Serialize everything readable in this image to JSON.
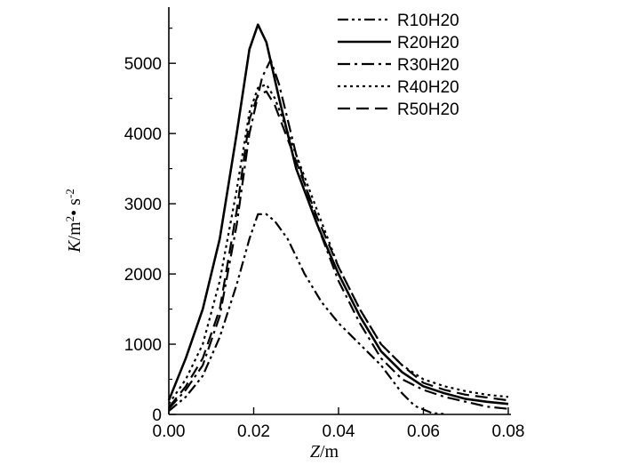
{
  "chart_data": {
    "type": "line",
    "title": "",
    "xlabel": "Z/m",
    "ylabel": "K/m²·s⁻²",
    "xlim": [
      0.0,
      0.08
    ],
    "ylim": [
      0,
      5800
    ],
    "x_ticks": [
      "0.00",
      "0.02",
      "0.04",
      "0.06",
      "0.08"
    ],
    "y_ticks": [
      "0",
      "1000",
      "2000",
      "3000",
      "4000",
      "5000"
    ],
    "grid": false,
    "legend_position": "top-right",
    "series": [
      {
        "name": "R10H20",
        "dash": "dash-dot-dot",
        "points": [
          [
            0.0,
            50
          ],
          [
            0.004,
            250
          ],
          [
            0.008,
            550
          ],
          [
            0.012,
            1100
          ],
          [
            0.016,
            1850
          ],
          [
            0.019,
            2500
          ],
          [
            0.021,
            2850
          ],
          [
            0.023,
            2850
          ],
          [
            0.025,
            2750
          ],
          [
            0.028,
            2500
          ],
          [
            0.032,
            2000
          ],
          [
            0.036,
            1600
          ],
          [
            0.04,
            1300
          ],
          [
            0.045,
            1000
          ],
          [
            0.05,
            700
          ],
          [
            0.055,
            300
          ],
          [
            0.058,
            120
          ],
          [
            0.062,
            20
          ],
          [
            0.065,
            5
          ]
        ]
      },
      {
        "name": "R20H20",
        "dash": "solid",
        "points": [
          [
            0.0,
            200
          ],
          [
            0.004,
            800
          ],
          [
            0.008,
            1500
          ],
          [
            0.012,
            2500
          ],
          [
            0.016,
            4000
          ],
          [
            0.019,
            5200
          ],
          [
            0.021,
            5550
          ],
          [
            0.023,
            5300
          ],
          [
            0.026,
            4500
          ],
          [
            0.03,
            3500
          ],
          [
            0.035,
            2700
          ],
          [
            0.04,
            2000
          ],
          [
            0.045,
            1400
          ],
          [
            0.05,
            900
          ],
          [
            0.055,
            600
          ],
          [
            0.06,
            400
          ],
          [
            0.065,
            300
          ],
          [
            0.07,
            220
          ],
          [
            0.075,
            180
          ],
          [
            0.08,
            150
          ]
        ]
      },
      {
        "name": "R30H20",
        "dash": "dash-dot",
        "points": [
          [
            0.0,
            80
          ],
          [
            0.004,
            350
          ],
          [
            0.008,
            700
          ],
          [
            0.012,
            1400
          ],
          [
            0.016,
            2700
          ],
          [
            0.019,
            4000
          ],
          [
            0.022,
            4800
          ],
          [
            0.024,
            5050
          ],
          [
            0.026,
            4700
          ],
          [
            0.03,
            3700
          ],
          [
            0.035,
            2700
          ],
          [
            0.04,
            1900
          ],
          [
            0.045,
            1300
          ],
          [
            0.05,
            800
          ],
          [
            0.055,
            500
          ],
          [
            0.06,
            350
          ],
          [
            0.065,
            250
          ],
          [
            0.07,
            180
          ],
          [
            0.075,
            110
          ],
          [
            0.08,
            80
          ]
        ]
      },
      {
        "name": "R40H20",
        "dash": "dotted",
        "points": [
          [
            0.0,
            150
          ],
          [
            0.004,
            500
          ],
          [
            0.008,
            1000
          ],
          [
            0.012,
            1900
          ],
          [
            0.016,
            3200
          ],
          [
            0.019,
            4300
          ],
          [
            0.021,
            4650
          ],
          [
            0.023,
            4700
          ],
          [
            0.025,
            4500
          ],
          [
            0.03,
            3700
          ],
          [
            0.035,
            2900
          ],
          [
            0.04,
            2100
          ],
          [
            0.045,
            1500
          ],
          [
            0.05,
            1000
          ],
          [
            0.055,
            700
          ],
          [
            0.06,
            500
          ],
          [
            0.065,
            400
          ],
          [
            0.07,
            330
          ],
          [
            0.075,
            280
          ],
          [
            0.08,
            250
          ]
        ]
      },
      {
        "name": "R50H20",
        "dash": "dashed",
        "points": [
          [
            0.0,
            100
          ],
          [
            0.004,
            400
          ],
          [
            0.008,
            800
          ],
          [
            0.012,
            1500
          ],
          [
            0.016,
            2900
          ],
          [
            0.019,
            4200
          ],
          [
            0.021,
            4550
          ],
          [
            0.023,
            4600
          ],
          [
            0.025,
            4400
          ],
          [
            0.03,
            3600
          ],
          [
            0.035,
            2800
          ],
          [
            0.04,
            2100
          ],
          [
            0.045,
            1500
          ],
          [
            0.05,
            1000
          ],
          [
            0.055,
            700
          ],
          [
            0.06,
            450
          ],
          [
            0.065,
            350
          ],
          [
            0.07,
            280
          ],
          [
            0.075,
            240
          ],
          [
            0.08,
            200
          ]
        ]
      }
    ]
  }
}
